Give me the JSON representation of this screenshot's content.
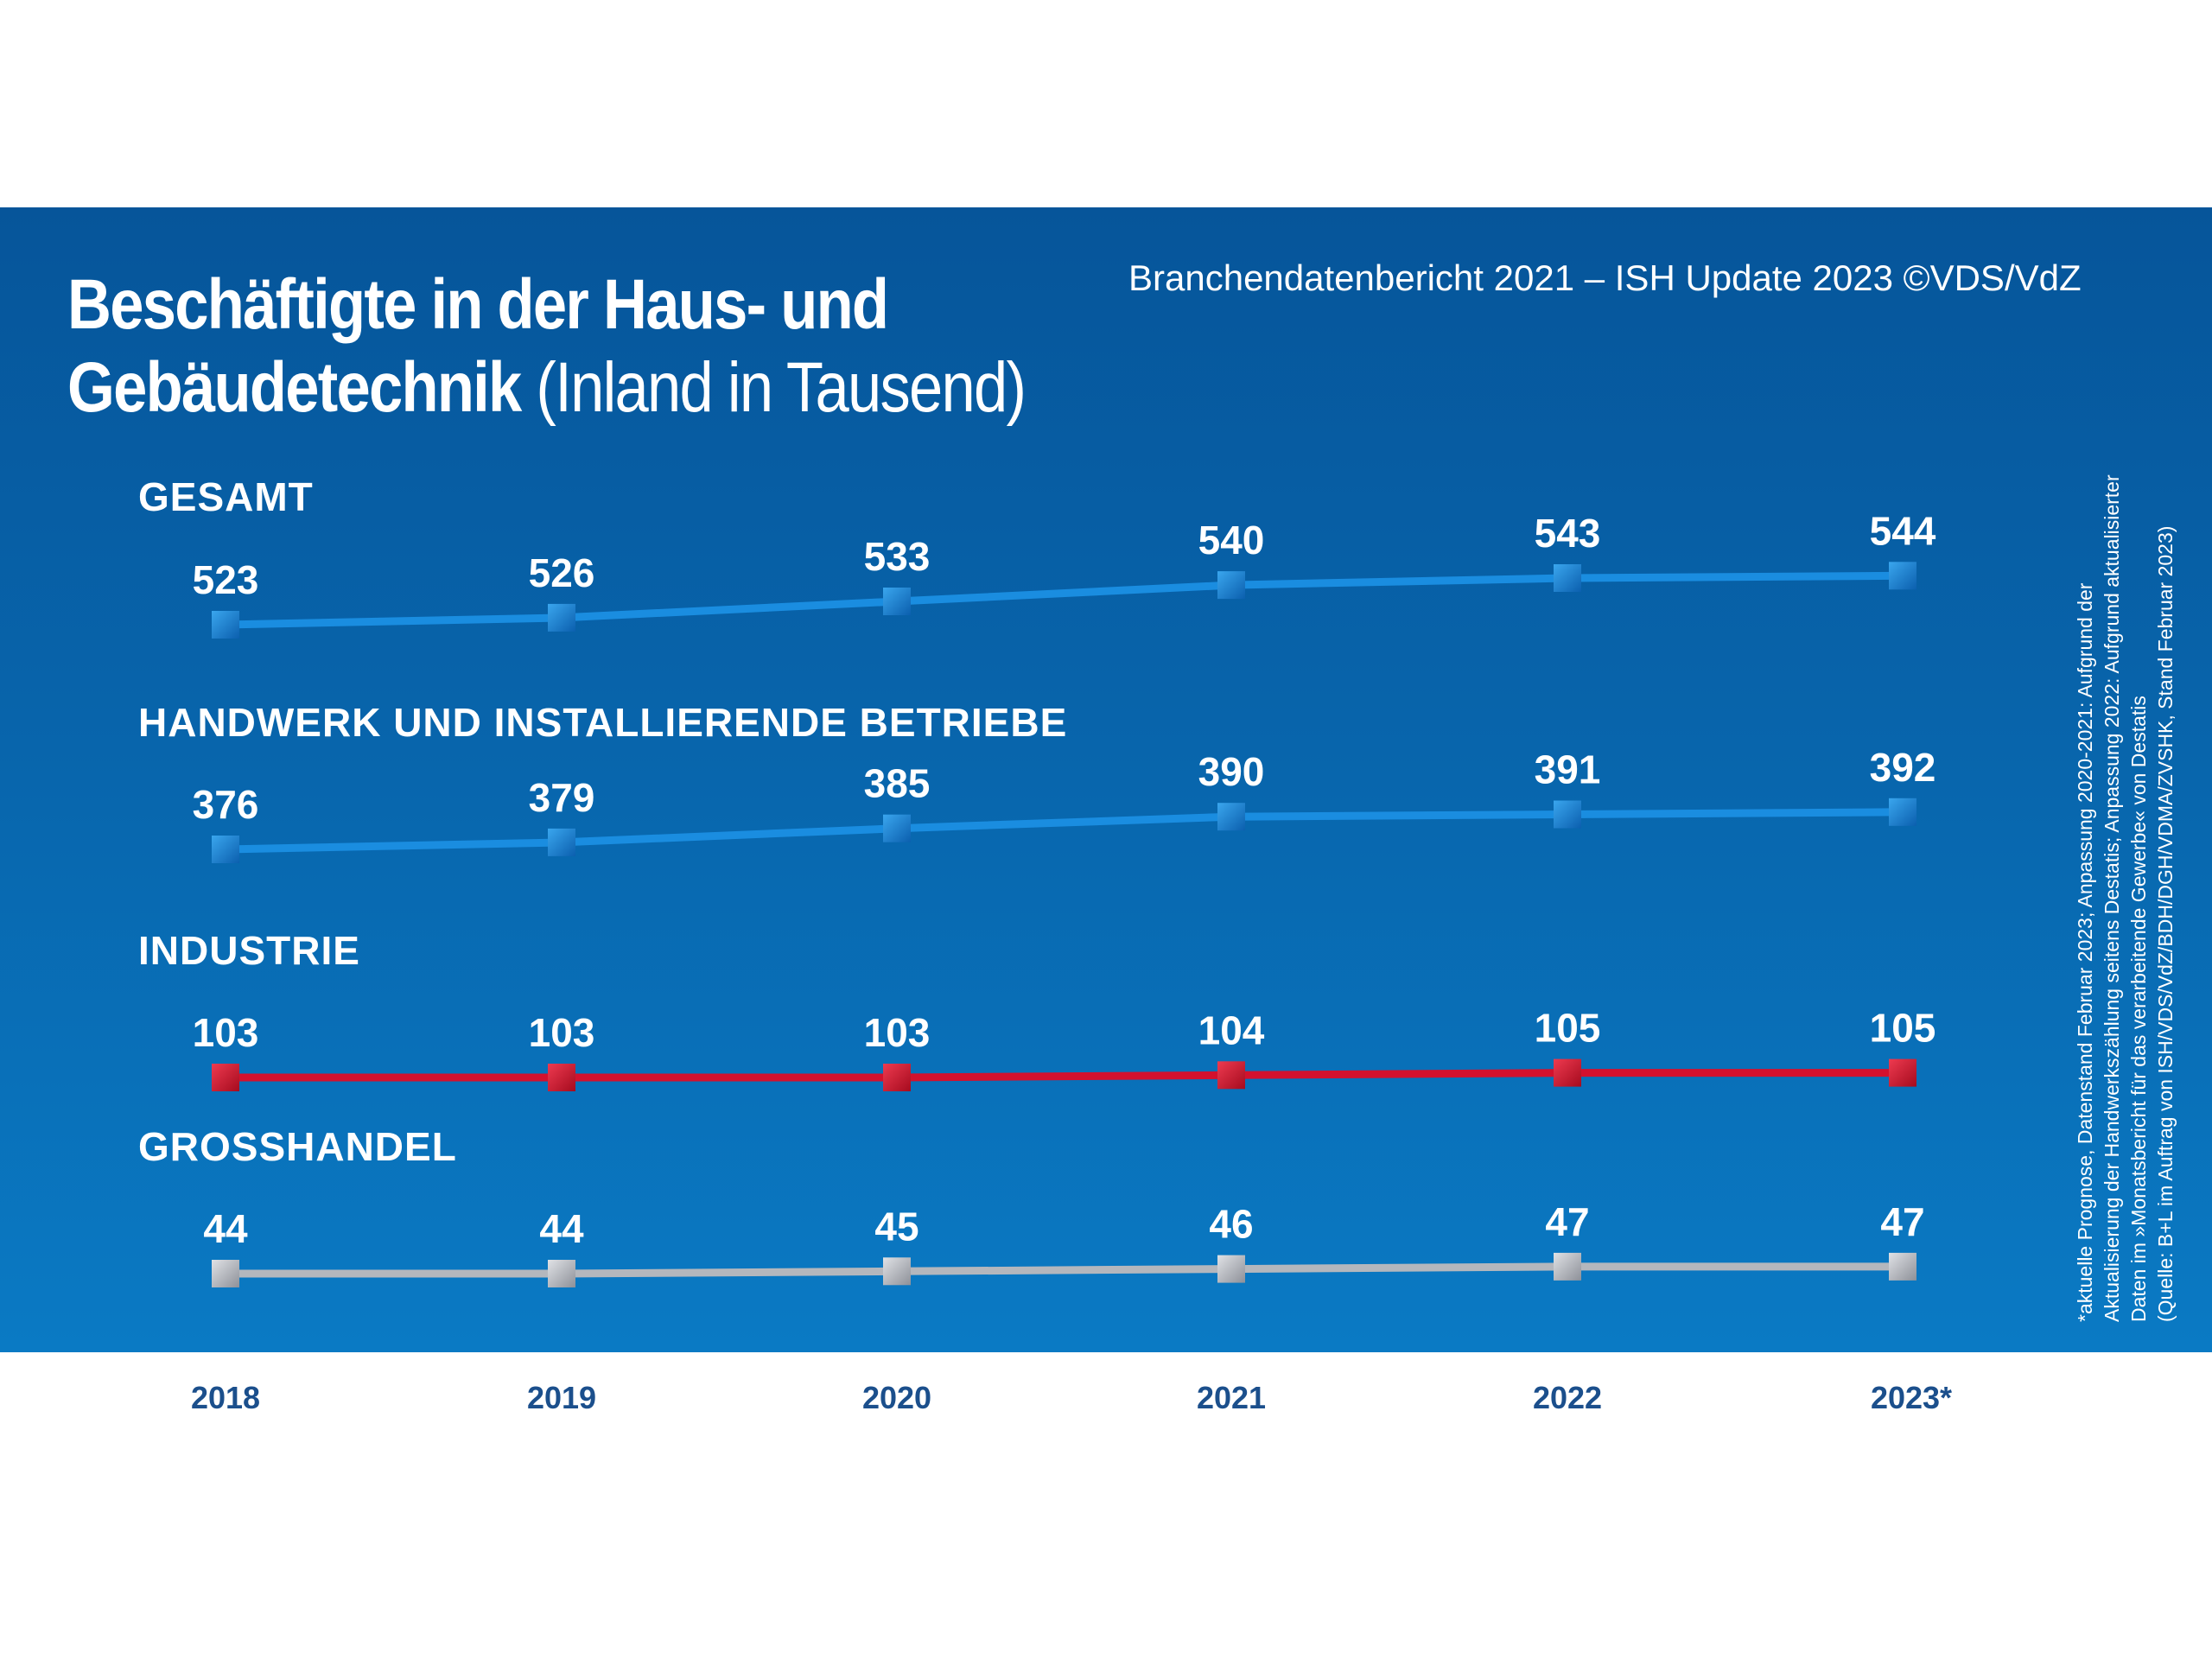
{
  "header": {
    "title_bold_1": "Beschäftigte in der Haus- und",
    "title_bold_2": "Gebäudetechnik",
    "title_light": " (Inland in Tausend)",
    "credit": "Branchendatenbericht 2021 – ISH Update 2023 ©VDS/VdZ"
  },
  "footnote": [
    "*aktuelle Prognose, Datenstand Februar 2023; Anpassung 2020-2021: Aufgrund der",
    "Aktualisierung der Handwerkszählung seitens Destatis; Anpassung 2022: Aufgrund aktualisierter",
    "Daten im »Monatsbericht für das verarbeitende Gewerbe« von Destatis",
    "(Quelle: B+L im Auftrag von ISH/VDS/VdZ/BDH/DGH/VDMA/ZVSHK, Stand Februar 2023)"
  ],
  "colors": {
    "gesamt": "#1a8de0",
    "handwerk": "#1a8de0",
    "industrie": "#d3112e",
    "grosshandel": "#b4b7bd",
    "year_labels": "#1b4f8c"
  },
  "chart_data": {
    "type": "line",
    "title": "Beschäftigte in der Haus- und Gebäudetechnik (Inland in Tausend)",
    "categories": [
      "2018",
      "2019",
      "2020",
      "2021",
      "2022",
      "2023*"
    ],
    "series": [
      {
        "name": "GESAMT",
        "values": [
          523,
          526,
          533,
          540,
          543,
          544
        ]
      },
      {
        "name": "HANDWERK UND INSTALLIERENDE BETRIEBE",
        "values": [
          376,
          379,
          385,
          390,
          391,
          392
        ]
      },
      {
        "name": "INDUSTRIE",
        "values": [
          103,
          103,
          103,
          104,
          105,
          105
        ]
      },
      {
        "name": "GROSSHANDEL",
        "values": [
          44,
          44,
          45,
          46,
          47,
          47
        ]
      }
    ],
    "grid": false,
    "legend": "none"
  }
}
